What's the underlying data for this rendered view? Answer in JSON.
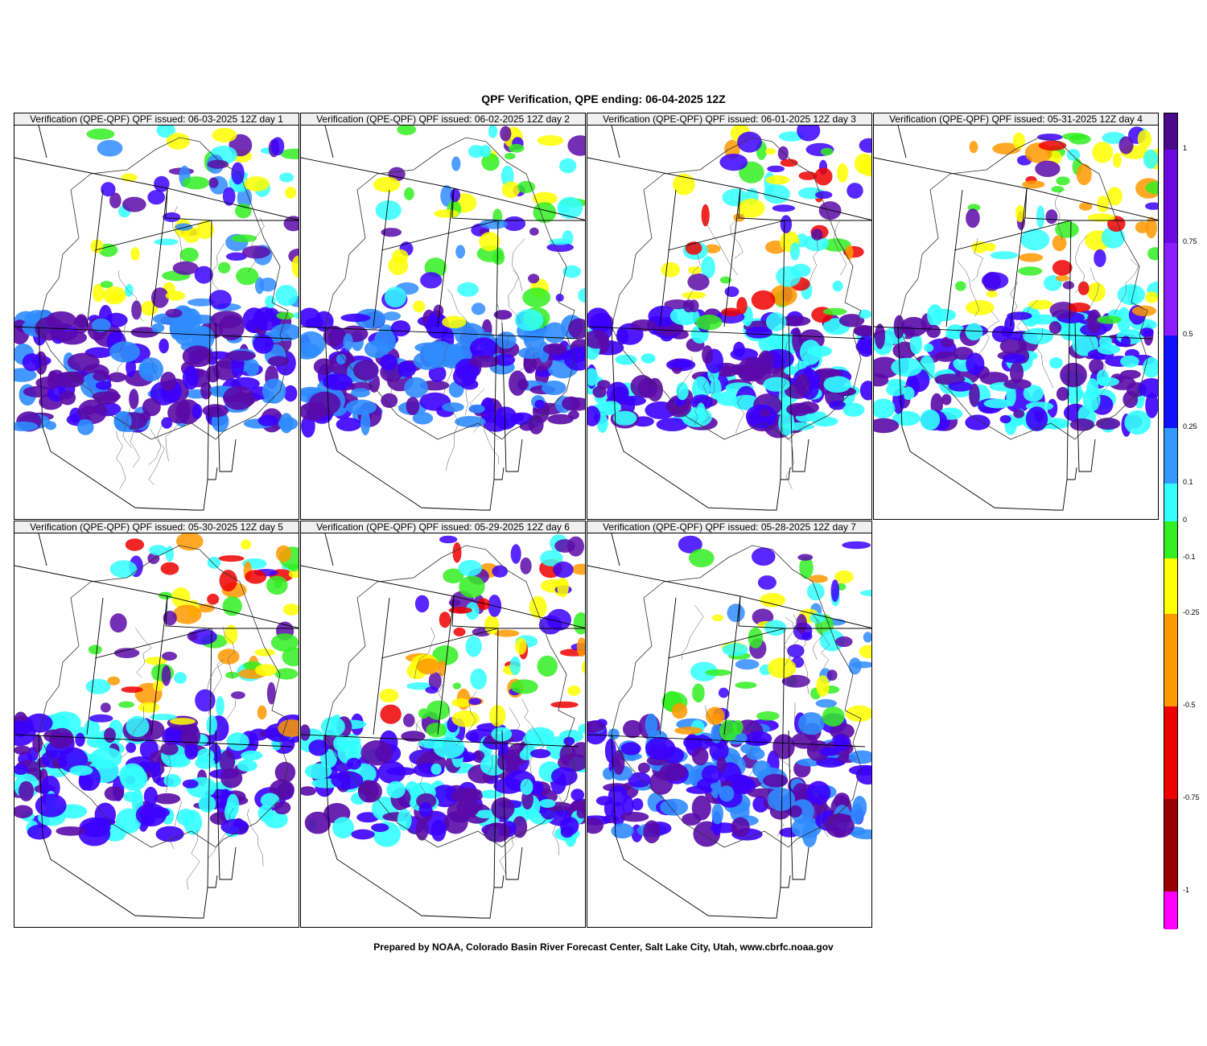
{
  "page_title": "QPF Verification, QPE ending: 06-04-2025 12Z",
  "footer": "Prepared by NOAA, Colorado Basin River Forecast Center, Salt Lake City, Utah, www.cbrfc.noaa.gov",
  "panels": [
    {
      "label": "Verification (QPE-QPF)  QPF issued: 06-03-2025 12Z day 1",
      "day": 1,
      "wet_colors": [
        "#5a0aa8",
        "#3b00ff",
        "#2f8cff",
        "#33ffff",
        "#33ee22",
        "#ffff00"
      ]
    },
    {
      "label": "Verification (QPE-QPF)  QPF issued: 06-02-2025 12Z day 2",
      "day": 2,
      "wet_colors": [
        "#5a0aa8",
        "#3b00ff",
        "#2f8cff",
        "#33ffff",
        "#33ee22",
        "#ffff00"
      ]
    },
    {
      "label": "Verification (QPE-QPF)  QPF issued: 06-01-2025 12Z day 3",
      "day": 3,
      "wet_colors": [
        "#5a0aa8",
        "#3b00ff",
        "#33ffff",
        "#33ee22",
        "#ffff00",
        "#ff9900",
        "#ee0000"
      ]
    },
    {
      "label": "Verification (QPE-QPF)  QPF issued: 05-31-2025 12Z day 4",
      "day": 4,
      "wet_colors": [
        "#5a0aa8",
        "#3b00ff",
        "#33ffff",
        "#33ee22",
        "#ffff00",
        "#ff9900",
        "#ee0000"
      ]
    },
    {
      "label": "Verification (QPE-QPF)  QPF issued: 05-30-2025 12Z day 5",
      "day": 5,
      "wet_colors": [
        "#5a0aa8",
        "#3b00ff",
        "#33ffff",
        "#33ee22",
        "#ffff00",
        "#ff9900",
        "#ee0000"
      ]
    },
    {
      "label": "Verification (QPE-QPF)  QPF issued: 05-29-2025 12Z day 6",
      "day": 6,
      "wet_colors": [
        "#5a0aa8",
        "#3b00ff",
        "#33ffff",
        "#33ee22",
        "#ffff00",
        "#ff9900",
        "#ee0000"
      ]
    },
    {
      "label": "Verification (QPE-QPF)  QPF issued: 05-28-2025 12Z day 7",
      "day": 7,
      "wet_colors": [
        "#5a0aa8",
        "#3b00ff",
        "#2f8cff",
        "#33ffff",
        "#33ee22",
        "#ffff00",
        "#ff9900"
      ]
    }
  ],
  "legend": {
    "bands": [
      {
        "from": 1.25,
        "to": 1.0,
        "color": "#4b0a8c"
      },
      {
        "from": 1.0,
        "to": 0.75,
        "color": "#6a0ae0"
      },
      {
        "from": 0.75,
        "to": 0.5,
        "color": "#8a1cff"
      },
      {
        "from": 0.5,
        "to": 0.25,
        "color": "#1010ff"
      },
      {
        "from": 0.25,
        "to": 0.1,
        "color": "#3399ff"
      },
      {
        "from": 0.1,
        "to": 0,
        "color": "#33ffff"
      },
      {
        "from": 0,
        "to": -0.1,
        "color": "#33ee22"
      },
      {
        "from": -0.1,
        "to": -0.25,
        "color": "#ffff00"
      },
      {
        "from": -0.25,
        "to": -0.5,
        "color": "#ff9900"
      },
      {
        "from": -0.5,
        "to": -0.75,
        "color": "#ee0000"
      },
      {
        "from": -0.75,
        "to": -1.0,
        "color": "#990000"
      },
      {
        "from": -1.0,
        "to": -1.25,
        "color": "#ff00ff"
      }
    ],
    "ticks": [
      "1",
      "0.75",
      "0.5",
      "0.25",
      "0.1",
      "0",
      "-0.1",
      "-0.25",
      "-0.5",
      "-0.75",
      "-1"
    ]
  }
}
